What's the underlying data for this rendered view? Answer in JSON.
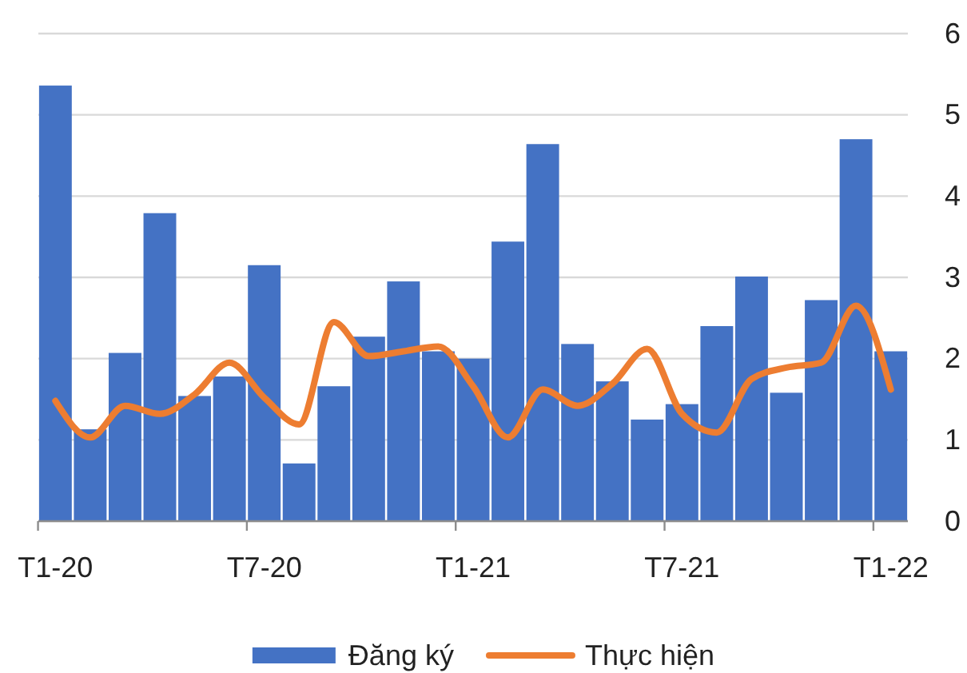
{
  "chart_data": {
    "type": "bar",
    "categories": [
      "T1-20",
      null,
      null,
      null,
      null,
      null,
      "T7-20",
      null,
      null,
      null,
      null,
      null,
      "T1-21",
      null,
      null,
      null,
      null,
      null,
      "T7-21",
      null,
      null,
      null,
      null,
      null,
      "T1-22"
    ],
    "series": [
      {
        "name": "Đăng ký",
        "color": "#4472c4",
        "values": [
          5.36,
          1.13,
          2.07,
          3.79,
          1.54,
          1.78,
          3.15,
          0.71,
          1.66,
          2.27,
          2.95,
          2.09,
          2.0,
          3.44,
          4.64,
          2.18,
          1.72,
          1.25,
          1.44,
          2.4,
          3.01,
          1.58,
          2.72,
          4.7,
          2.09
        ]
      },
      {
        "name": "Thực hiện",
        "type": "line",
        "color": "#ed7d31",
        "values": [
          1.48,
          1.03,
          1.42,
          1.32,
          1.56,
          1.95,
          1.52,
          1.19,
          2.45,
          2.03,
          2.09,
          2.15,
          1.66,
          1.03,
          1.62,
          1.42,
          1.69,
          2.12,
          1.32,
          1.09,
          1.75,
          1.89,
          1.95,
          2.65,
          1.62
        ]
      }
    ],
    "ylim": [
      0,
      6
    ],
    "yticks": [
      0,
      1,
      2,
      3,
      4,
      5,
      6
    ],
    "grid": "y",
    "legend": "bottom",
    "marker": "none",
    "line_style": "solid"
  }
}
